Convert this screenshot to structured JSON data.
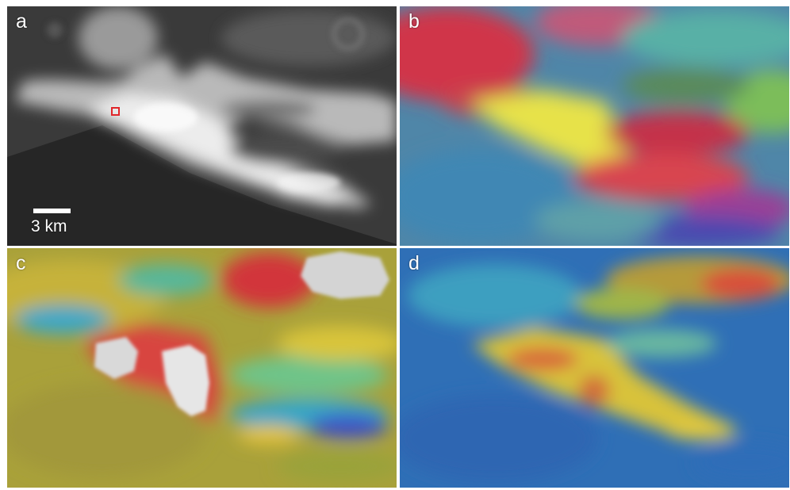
{
  "panels": [
    {
      "id": "a",
      "label": "a",
      "style": "grayscale"
    },
    {
      "id": "b",
      "label": "b",
      "style": "rgb-composite"
    },
    {
      "id": "c",
      "label": "c",
      "style": "jet-overlay"
    },
    {
      "id": "d",
      "label": "d",
      "style": "jet-overlay"
    }
  ],
  "scale_bar": {
    "label": "3 km"
  },
  "colors": {
    "marker": "#e0262a",
    "text": "#ffffff",
    "separator": "#ffffff"
  }
}
